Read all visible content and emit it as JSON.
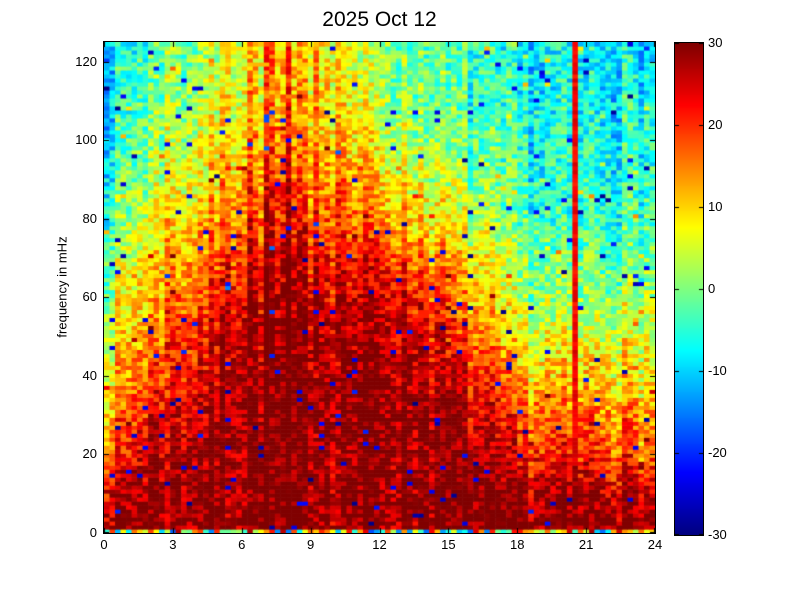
{
  "chart_data": {
    "type": "heatmap",
    "title": "2025 Oct 12",
    "xlabel": "",
    "ylabel": "frequency in mHz",
    "xlim": [
      0,
      24
    ],
    "ylim": [
      0,
      125
    ],
    "x_ticks": [
      0,
      3,
      6,
      9,
      12,
      15,
      18,
      21,
      24
    ],
    "y_ticks": [
      0,
      20,
      40,
      60,
      80,
      100,
      120
    ],
    "colorbar": {
      "min": -30,
      "max": 30,
      "ticks": [
        30,
        20,
        10,
        0,
        -10,
        -20,
        -30
      ],
      "colormap": "jet"
    },
    "grid": {
      "nx": 100,
      "ny": 123
    },
    "base_field": {
      "hours": [
        0,
        2,
        4,
        6,
        8,
        10,
        12,
        14,
        16,
        18,
        20,
        22,
        24
      ],
      "freqs": [
        0,
        10,
        20,
        30,
        40,
        50,
        60,
        70,
        80,
        90,
        100,
        110,
        120,
        130
      ],
      "values": [
        [
          30,
          30,
          30,
          30,
          30,
          30,
          30,
          30,
          30,
          30,
          30,
          30,
          30
        ],
        [
          26,
          30,
          30,
          30,
          30,
          30,
          30,
          30,
          30,
          29,
          28,
          28,
          26
        ],
        [
          16,
          27,
          29,
          30,
          30,
          30,
          30,
          30,
          28,
          22,
          20,
          20,
          16
        ],
        [
          12,
          23,
          27,
          30,
          30,
          30,
          30,
          30,
          26,
          18,
          16,
          16,
          13
        ],
        [
          8,
          19,
          24,
          29,
          30,
          29,
          30,
          28,
          22,
          12,
          10,
          10,
          9
        ],
        [
          5,
          15,
          21,
          27,
          28,
          27,
          28,
          25,
          16,
          7,
          5,
          6,
          6
        ],
        [
          2,
          12,
          18,
          25,
          26,
          25,
          26,
          21,
          12,
          3,
          1,
          2,
          2
        ],
        [
          0,
          9,
          14,
          21,
          24,
          23,
          22,
          16,
          8,
          0,
          -2,
          -1,
          -1
        ],
        [
          -4,
          6,
          11,
          17,
          20,
          18,
          14,
          10,
          4,
          -3,
          -5,
          -4,
          -3
        ],
        [
          -6,
          3,
          8,
          13,
          17,
          15,
          10,
          6,
          0,
          -5,
          -6,
          -5,
          -5
        ],
        [
          -8,
          1,
          5,
          10,
          14,
          12,
          6,
          2,
          -2,
          -6,
          -7,
          -6,
          -6
        ],
        [
          -9,
          -1,
          3,
          8,
          12,
          10,
          4,
          0,
          -4,
          -7,
          -8,
          -7,
          -7
        ],
        [
          -10,
          -2,
          2,
          7,
          11,
          9,
          2,
          -1,
          -5,
          -8,
          -8,
          -8,
          -8
        ],
        [
          -10,
          -3,
          1,
          6,
          10,
          8,
          1,
          -2,
          -5,
          -8,
          -9,
          -8,
          -8
        ]
      ]
    },
    "noise": {
      "seed": 7,
      "cell_amplitude": 6.5,
      "column_amplitude": 3.5,
      "neg_spike_prob": 0.02,
      "neg_spike_range": [
        -30,
        -20
      ],
      "pos_spike_prob": 0.015,
      "pos_spike_boost": 11
    },
    "features": {
      "vertical_line": {
        "hour": 20.55,
        "half_width_hours": 0.13,
        "min_value": 23,
        "jitter": 5
      },
      "warm_streaks": {
        "hours": [
          2.75,
          5.3,
          6.35,
          7.2,
          8.1,
          9.35,
          10.3
        ],
        "boost": 6,
        "freq_min": 45
      },
      "bottom_row": {
        "freq_max": 1.3,
        "range": [
          -18,
          28
        ]
      }
    }
  }
}
